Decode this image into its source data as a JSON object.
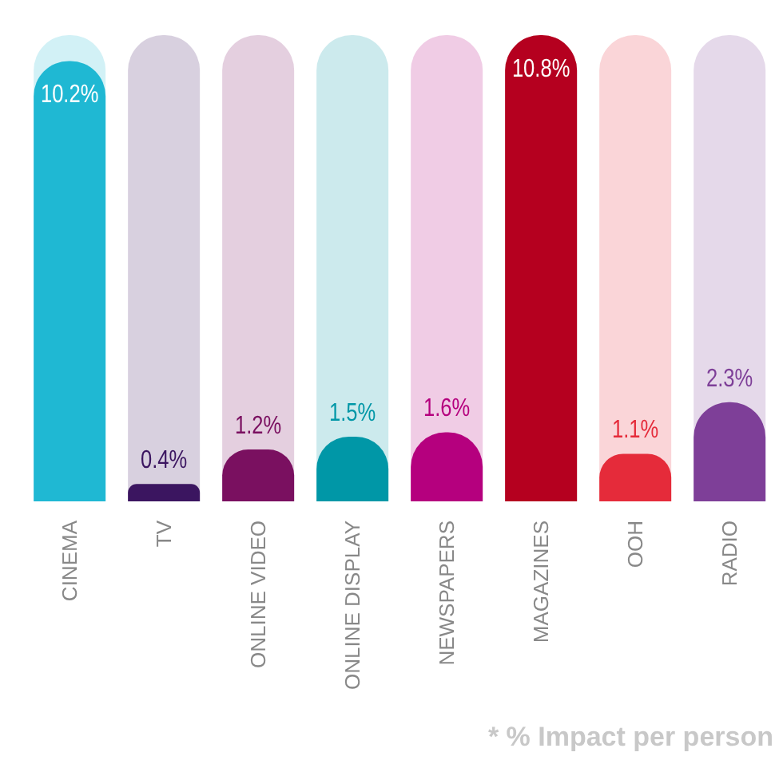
{
  "chart_data": {
    "type": "bar",
    "categories": [
      "CINEMA",
      "TV",
      "ONLINE VIDEO",
      "ONLINE DISPLAY",
      "NEWSPAPERS",
      "MAGAZINES",
      "OOH",
      "RADIO"
    ],
    "values": [
      10.2,
      0.4,
      1.2,
      1.5,
      1.6,
      10.8,
      1.1,
      2.3
    ],
    "colors": [
      "#1fb8d3",
      "#3b1560",
      "#7a1060",
      "#0097a7",
      "#b5007e",
      "#b5001f",
      "#e52b3a",
      "#7e3f98"
    ],
    "value_labels": [
      "10.2%",
      "0.4%",
      "1.2%",
      "1.5%",
      "1.6%",
      "10.8%",
      "1.1%",
      "2.3%"
    ],
    "annotations": [
      "* % Impact per person"
    ],
    "grid": false,
    "legend": false
  }
}
